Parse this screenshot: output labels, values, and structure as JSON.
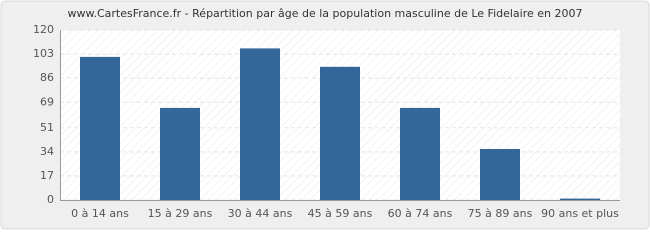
{
  "chart_data": {
    "type": "bar",
    "title": "www.CartesFrance.fr - Répartition par âge de la population masculine de Le Fidelaire en 2007",
    "categories": [
      "0 à 14 ans",
      "15 à 29 ans",
      "30 à 44 ans",
      "45 à 59 ans",
      "60 à 74 ans",
      "75 à 89 ans",
      "90 ans et plus"
    ],
    "values": [
      101,
      65,
      107,
      94,
      65,
      36,
      1
    ],
    "color": "#336699",
    "ylim": [
      0,
      120
    ],
    "yticks": [
      0,
      17,
      34,
      51,
      69,
      86,
      103,
      120
    ],
    "grid": true
  }
}
